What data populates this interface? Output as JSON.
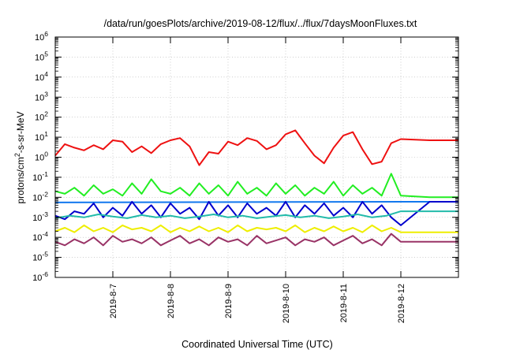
{
  "chart_data": {
    "type": "line",
    "title": "/data/run/goesPlots/archive/2019-08-12/flux/../flux/7daysMoonFluxes.txt",
    "xlabel": "Coordinated Universal Time (UTC)",
    "ylabel": "protons/cm2-s-sr-MeV",
    "ylabel_parts": {
      "base": "protons/cm",
      "sup": "2",
      "rest": "-s-sr-MeV"
    },
    "yscale": "log",
    "ylim": [
      1e-06,
      1000000.0
    ],
    "xlim": [
      "2019-08-06 00:00",
      "2019-08-13 00:00"
    ],
    "xticks": [
      "2019-8-7",
      "2019-8-8",
      "2019-8-9",
      "2019-8-10",
      "2019-8-11",
      "2019-8-12"
    ],
    "xtick_dates": [
      "2019-08-07",
      "2019-08-08",
      "2019-08-09",
      "2019-08-10",
      "2019-08-11",
      "2019-08-12"
    ],
    "yticks": [
      {
        "base": "10",
        "exp": "6"
      },
      {
        "base": "10",
        "exp": "5"
      },
      {
        "base": "10",
        "exp": "4"
      },
      {
        "base": "10",
        "exp": "3"
      },
      {
        "base": "10",
        "exp": "2"
      },
      {
        "base": "10",
        "exp": "1"
      },
      {
        "base": "10",
        "exp": "0"
      },
      {
        "base": "10",
        "exp": "-1"
      },
      {
        "base": "10",
        "exp": "-2"
      },
      {
        "base": "10",
        "exp": "-3"
      },
      {
        "base": "10",
        "exp": "-4"
      },
      {
        "base": "10",
        "exp": "-5"
      },
      {
        "base": "10",
        "exp": "-6"
      }
    ],
    "grid": true,
    "series": [
      {
        "color": "#ee1111",
        "x": [
          "2019-08-06 00:00",
          "2019-08-06 04:00",
          "2019-08-06 08:00",
          "2019-08-06 12:00",
          "2019-08-06 16:00",
          "2019-08-06 20:00",
          "2019-08-07 00:00",
          "2019-08-07 04:00",
          "2019-08-07 08:00",
          "2019-08-07 12:00",
          "2019-08-07 16:00",
          "2019-08-07 20:00",
          "2019-08-08 00:00",
          "2019-08-08 04:00",
          "2019-08-08 08:00",
          "2019-08-08 12:00",
          "2019-08-08 16:00",
          "2019-08-08 20:00",
          "2019-08-09 00:00",
          "2019-08-09 04:00",
          "2019-08-09 08:00",
          "2019-08-09 12:00",
          "2019-08-09 16:00",
          "2019-08-09 20:00",
          "2019-08-10 00:00",
          "2019-08-10 04:00",
          "2019-08-10 08:00",
          "2019-08-10 12:00",
          "2019-08-10 16:00",
          "2019-08-10 20:00",
          "2019-08-11 00:00",
          "2019-08-11 04:00",
          "2019-08-11 08:00",
          "2019-08-11 12:00",
          "2019-08-11 16:00",
          "2019-08-11 20:00",
          "2019-08-12 00:00",
          "2019-08-12 12:00",
          "2019-08-13 00:00"
        ],
        "y": [
          1.2,
          4.5,
          3.0,
          2.2,
          4.0,
          2.5,
          7.0,
          6.0,
          1.8,
          3.5,
          1.6,
          4.5,
          7.0,
          9.0,
          3.5,
          0.4,
          1.8,
          1.5,
          6.0,
          4.0,
          9.0,
          6.5,
          2.5,
          4.0,
          14.0,
          22.0,
          5.0,
          1.2,
          0.5,
          3.0,
          12.0,
          18.0,
          2.5,
          0.45,
          0.6,
          5.0,
          8.0,
          7.0,
          7.0
        ]
      },
      {
        "color": "#22ee22",
        "x": [
          "2019-08-06 00:00",
          "2019-08-06 04:00",
          "2019-08-06 08:00",
          "2019-08-06 12:00",
          "2019-08-06 16:00",
          "2019-08-06 20:00",
          "2019-08-07 00:00",
          "2019-08-07 04:00",
          "2019-08-07 08:00",
          "2019-08-07 12:00",
          "2019-08-07 16:00",
          "2019-08-07 20:00",
          "2019-08-08 00:00",
          "2019-08-08 04:00",
          "2019-08-08 08:00",
          "2019-08-08 12:00",
          "2019-08-08 16:00",
          "2019-08-08 20:00",
          "2019-08-09 00:00",
          "2019-08-09 04:00",
          "2019-08-09 08:00",
          "2019-08-09 12:00",
          "2019-08-09 16:00",
          "2019-08-09 20:00",
          "2019-08-10 00:00",
          "2019-08-10 04:00",
          "2019-08-10 08:00",
          "2019-08-10 12:00",
          "2019-08-10 16:00",
          "2019-08-10 20:00",
          "2019-08-11 00:00",
          "2019-08-11 04:00",
          "2019-08-11 08:00",
          "2019-08-11 12:00",
          "2019-08-11 16:00",
          "2019-08-11 20:00",
          "2019-08-12 00:00",
          "2019-08-12 12:00",
          "2019-08-13 00:00"
        ],
        "y": [
          0.02,
          0.015,
          0.03,
          0.012,
          0.04,
          0.015,
          0.025,
          0.012,
          0.05,
          0.015,
          0.08,
          0.02,
          0.015,
          0.03,
          0.012,
          0.05,
          0.015,
          0.04,
          0.012,
          0.06,
          0.015,
          0.03,
          0.012,
          0.05,
          0.015,
          0.04,
          0.012,
          0.03,
          0.015,
          0.06,
          0.012,
          0.04,
          0.015,
          0.03,
          0.012,
          0.15,
          0.012,
          0.01,
          0.01
        ]
      },
      {
        "color": "#1177ee",
        "x": [
          "2019-08-06 00:00",
          "2019-08-12 00:00",
          "2019-08-13 00:00"
        ],
        "y": [
          0.0055,
          0.006,
          0.006
        ]
      },
      {
        "color": "#0000cc",
        "x": [
          "2019-08-06 00:00",
          "2019-08-06 04:00",
          "2019-08-06 08:00",
          "2019-08-06 12:00",
          "2019-08-06 16:00",
          "2019-08-06 20:00",
          "2019-08-07 00:00",
          "2019-08-07 04:00",
          "2019-08-07 08:00",
          "2019-08-07 12:00",
          "2019-08-07 16:00",
          "2019-08-07 20:00",
          "2019-08-08 00:00",
          "2019-08-08 04:00",
          "2019-08-08 08:00",
          "2019-08-08 12:00",
          "2019-08-08 16:00",
          "2019-08-08 20:00",
          "2019-08-09 00:00",
          "2019-08-09 04:00",
          "2019-08-09 08:00",
          "2019-08-09 12:00",
          "2019-08-09 16:00",
          "2019-08-09 20:00",
          "2019-08-10 00:00",
          "2019-08-10 04:00",
          "2019-08-10 08:00",
          "2019-08-10 12:00",
          "2019-08-10 16:00",
          "2019-08-10 20:00",
          "2019-08-11 00:00",
          "2019-08-11 04:00",
          "2019-08-11 08:00",
          "2019-08-11 12:00",
          "2019-08-11 16:00",
          "2019-08-11 20:00",
          "2019-08-12 00:00",
          "2019-08-12 12:00",
          "2019-08-13 00:00"
        ],
        "y": [
          0.0012,
          0.0008,
          0.002,
          0.0015,
          0.005,
          0.001,
          0.003,
          0.0012,
          0.006,
          0.0015,
          0.004,
          0.001,
          0.005,
          0.0015,
          0.003,
          0.0008,
          0.006,
          0.0012,
          0.004,
          0.001,
          0.005,
          0.0015,
          0.003,
          0.0012,
          0.006,
          0.001,
          0.004,
          0.0015,
          0.005,
          0.0012,
          0.003,
          0.001,
          0.006,
          0.0015,
          0.004,
          0.001,
          0.0004,
          0.006,
          0.006
        ]
      },
      {
        "color": "#22bbaa",
        "x": [
          "2019-08-06 00:00",
          "2019-08-06 06:00",
          "2019-08-06 12:00",
          "2019-08-06 18:00",
          "2019-08-07 00:00",
          "2019-08-07 06:00",
          "2019-08-07 12:00",
          "2019-08-07 18:00",
          "2019-08-08 00:00",
          "2019-08-08 06:00",
          "2019-08-08 12:00",
          "2019-08-08 18:00",
          "2019-08-09 00:00",
          "2019-08-09 06:00",
          "2019-08-09 12:00",
          "2019-08-09 18:00",
          "2019-08-10 00:00",
          "2019-08-10 06:00",
          "2019-08-10 12:00",
          "2019-08-10 18:00",
          "2019-08-11 00:00",
          "2019-08-11 06:00",
          "2019-08-11 12:00",
          "2019-08-11 18:00",
          "2019-08-12 00:00",
          "2019-08-12 12:00",
          "2019-08-13 00:00"
        ],
        "y": [
          0.0009,
          0.0012,
          0.001,
          0.0014,
          0.0011,
          0.0009,
          0.0013,
          0.001,
          0.0012,
          0.0009,
          0.0011,
          0.0014,
          0.001,
          0.0012,
          0.0009,
          0.0011,
          0.0013,
          0.001,
          0.0012,
          0.0009,
          0.0011,
          0.0014,
          0.001,
          0.0012,
          0.002,
          0.002,
          0.002
        ]
      },
      {
        "color": "#eeee00",
        "x": [
          "2019-08-06 00:00",
          "2019-08-06 04:00",
          "2019-08-06 08:00",
          "2019-08-06 12:00",
          "2019-08-06 16:00",
          "2019-08-06 20:00",
          "2019-08-07 00:00",
          "2019-08-07 04:00",
          "2019-08-07 08:00",
          "2019-08-07 12:00",
          "2019-08-07 16:00",
          "2019-08-07 20:00",
          "2019-08-08 00:00",
          "2019-08-08 04:00",
          "2019-08-08 08:00",
          "2019-08-08 12:00",
          "2019-08-08 16:00",
          "2019-08-08 20:00",
          "2019-08-09 00:00",
          "2019-08-09 04:00",
          "2019-08-09 08:00",
          "2019-08-09 12:00",
          "2019-08-09 16:00",
          "2019-08-09 20:00",
          "2019-08-10 00:00",
          "2019-08-10 04:00",
          "2019-08-10 08:00",
          "2019-08-10 12:00",
          "2019-08-10 16:00",
          "2019-08-10 20:00",
          "2019-08-11 00:00",
          "2019-08-11 04:00",
          "2019-08-11 08:00",
          "2019-08-11 12:00",
          "2019-08-11 16:00",
          "2019-08-11 20:00",
          "2019-08-12 00:00",
          "2019-08-12 12:00",
          "2019-08-13 00:00"
        ],
        "y": [
          0.0002,
          0.0003,
          0.00018,
          0.0004,
          0.0002,
          0.0003,
          0.00018,
          0.0004,
          0.00025,
          0.0003,
          0.0002,
          0.0004,
          0.00018,
          0.0003,
          0.0002,
          0.00035,
          0.0002,
          0.0003,
          0.00018,
          0.0004,
          0.0002,
          0.0003,
          0.00025,
          0.0003,
          0.0002,
          0.0004,
          0.00018,
          0.0003,
          0.0002,
          0.00035,
          0.0002,
          0.0003,
          0.00018,
          0.0004,
          0.0002,
          0.0003,
          0.00018,
          0.00018,
          0.00018
        ]
      },
      {
        "color": "#993366",
        "x": [
          "2019-08-06 00:00",
          "2019-08-06 04:00",
          "2019-08-06 08:00",
          "2019-08-06 12:00",
          "2019-08-06 16:00",
          "2019-08-06 20:00",
          "2019-08-07 00:00",
          "2019-08-07 04:00",
          "2019-08-07 08:00",
          "2019-08-07 12:00",
          "2019-08-07 16:00",
          "2019-08-07 20:00",
          "2019-08-08 00:00",
          "2019-08-08 04:00",
          "2019-08-08 08:00",
          "2019-08-08 12:00",
          "2019-08-08 16:00",
          "2019-08-08 20:00",
          "2019-08-09 00:00",
          "2019-08-09 04:00",
          "2019-08-09 08:00",
          "2019-08-09 12:00",
          "2019-08-09 16:00",
          "2019-08-09 20:00",
          "2019-08-10 00:00",
          "2019-08-10 04:00",
          "2019-08-10 08:00",
          "2019-08-10 12:00",
          "2019-08-10 16:00",
          "2019-08-10 20:00",
          "2019-08-11 00:00",
          "2019-08-11 04:00",
          "2019-08-11 08:00",
          "2019-08-11 12:00",
          "2019-08-11 16:00",
          "2019-08-11 20:00",
          "2019-08-12 00:00",
          "2019-08-12 12:00",
          "2019-08-13 00:00"
        ],
        "y": [
          6e-05,
          4e-05,
          8e-05,
          5e-05,
          0.0001,
          4e-05,
          0.00012,
          6e-05,
          8e-05,
          5e-05,
          0.0001,
          4e-05,
          7e-05,
          0.00012,
          5e-05,
          8e-05,
          4e-05,
          0.0001,
          6e-05,
          8e-05,
          4e-05,
          0.00012,
          5e-05,
          7e-05,
          0.0001,
          4e-05,
          8e-05,
          6e-05,
          0.0001,
          4e-05,
          7e-05,
          0.00012,
          5e-05,
          8e-05,
          4e-05,
          0.00015,
          6e-05,
          6e-05,
          6e-05
        ]
      }
    ]
  }
}
